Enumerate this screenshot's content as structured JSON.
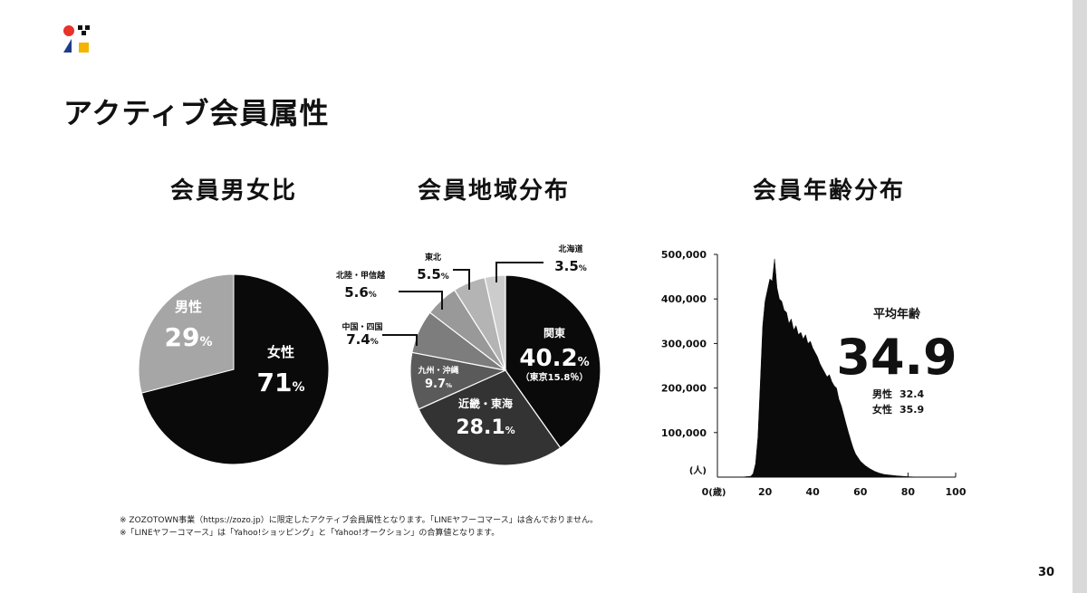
{
  "page": {
    "title": "アクティブ会員属性",
    "page_number": "30",
    "notes": [
      "※ ZOZOTOWN事業（https://zozo.jp）に限定したアクティブ会員属性となります。「LINEヤフーコマース」は含んでおりません。",
      "※「LINEヤフーコマース」は「Yahoo!ショッピング」と「Yahoo!オークション」の合算値となります。"
    ],
    "logo": {
      "name": "zozo-logo",
      "colors": [
        "#e8322a",
        "#1d3c8f",
        "#f4b400",
        "#111111"
      ]
    }
  },
  "chart_data": [
    {
      "type": "pie",
      "title": "会員男女比",
      "slices": [
        {
          "label": "女性",
          "value": 71,
          "display": "71",
          "unit": "%",
          "color": "#0a0a0a",
          "text_color": "#ffffff"
        },
        {
          "label": "男性",
          "value": 29,
          "display": "29",
          "unit": "%",
          "color": "#a6a6a6",
          "text_color": "#ffffff"
        }
      ]
    },
    {
      "type": "pie",
      "title": "会員地域分布",
      "slices": [
        {
          "label": "関東",
          "value": 40.2,
          "display": "40.2",
          "unit": "%",
          "sub": "（東京15.8％）",
          "color": "#0a0a0a"
        },
        {
          "label": "近畿・東海",
          "value": 28.1,
          "display": "28.1",
          "unit": "%",
          "color": "#333333"
        },
        {
          "label": "九州・沖縄",
          "value": 9.7,
          "display": "9.7",
          "unit": "%",
          "color": "#5a5a5a"
        },
        {
          "label": "中国・四国",
          "value": 7.4,
          "display": "7.4",
          "unit": "%",
          "color": "#7d7d7d"
        },
        {
          "label": "北陸・甲信越",
          "value": 5.6,
          "display": "5.6",
          "unit": "%",
          "color": "#999999"
        },
        {
          "label": "東北",
          "value": 5.5,
          "display": "5.5",
          "unit": "%",
          "color": "#b4b4b4"
        },
        {
          "label": "北海道",
          "value": 3.5,
          "display": "3.5",
          "unit": "%",
          "color": "#cccccc"
        }
      ]
    },
    {
      "type": "area",
      "title": "会員年齢分布",
      "x_unit": "(歳)",
      "y_unit": "(人)",
      "xlim": [
        0,
        100
      ],
      "ylim": [
        0,
        500000
      ],
      "x_ticks": [
        {
          "v": 0,
          "label": "0"
        },
        {
          "v": 20,
          "label": "20"
        },
        {
          "v": 40,
          "label": "40"
        },
        {
          "v": 60,
          "label": "60"
        },
        {
          "v": 80,
          "label": "80"
        },
        {
          "v": 100,
          "label": "100"
        }
      ],
      "y_ticks": [
        {
          "v": 100000,
          "label": "100,000"
        },
        {
          "v": 200000,
          "label": "200,000"
        },
        {
          "v": 300000,
          "label": "300,000"
        },
        {
          "v": 400000,
          "label": "400,000"
        },
        {
          "v": 500000,
          "label": "500,000"
        }
      ],
      "series": [
        {
          "x": [
            0,
            10,
            14,
            15,
            16,
            17,
            18,
            19,
            20,
            21,
            22,
            23,
            24,
            25,
            26,
            27,
            28,
            29,
            30,
            31,
            32,
            33,
            34,
            35,
            36,
            37,
            38,
            39,
            40,
            41,
            42,
            43,
            44,
            45,
            46,
            47,
            48,
            49,
            50,
            51,
            52,
            53,
            54,
            55,
            56,
            57,
            58,
            60,
            62,
            64,
            66,
            68,
            70,
            75,
            80,
            85,
            90,
            100
          ],
          "y": [
            0,
            0,
            2000,
            8000,
            30000,
            90000,
            210000,
            340000,
            395000,
            420000,
            445000,
            440000,
            490000,
            425000,
            400000,
            395000,
            375000,
            370000,
            345000,
            355000,
            330000,
            340000,
            320000,
            325000,
            310000,
            320000,
            300000,
            305000,
            290000,
            280000,
            270000,
            255000,
            245000,
            235000,
            225000,
            230000,
            215000,
            205000,
            200000,
            175000,
            160000,
            140000,
            120000,
            100000,
            82000,
            65000,
            52000,
            36000,
            26000,
            19000,
            13000,
            9000,
            6000,
            3000,
            1000,
            0,
            0,
            0
          ]
        }
      ],
      "annotation": {
        "label": "平均年齢",
        "value": "34.9",
        "male_label": "男性",
        "male_value": "32.4",
        "female_label": "女性",
        "female_value": "35.9"
      }
    }
  ]
}
